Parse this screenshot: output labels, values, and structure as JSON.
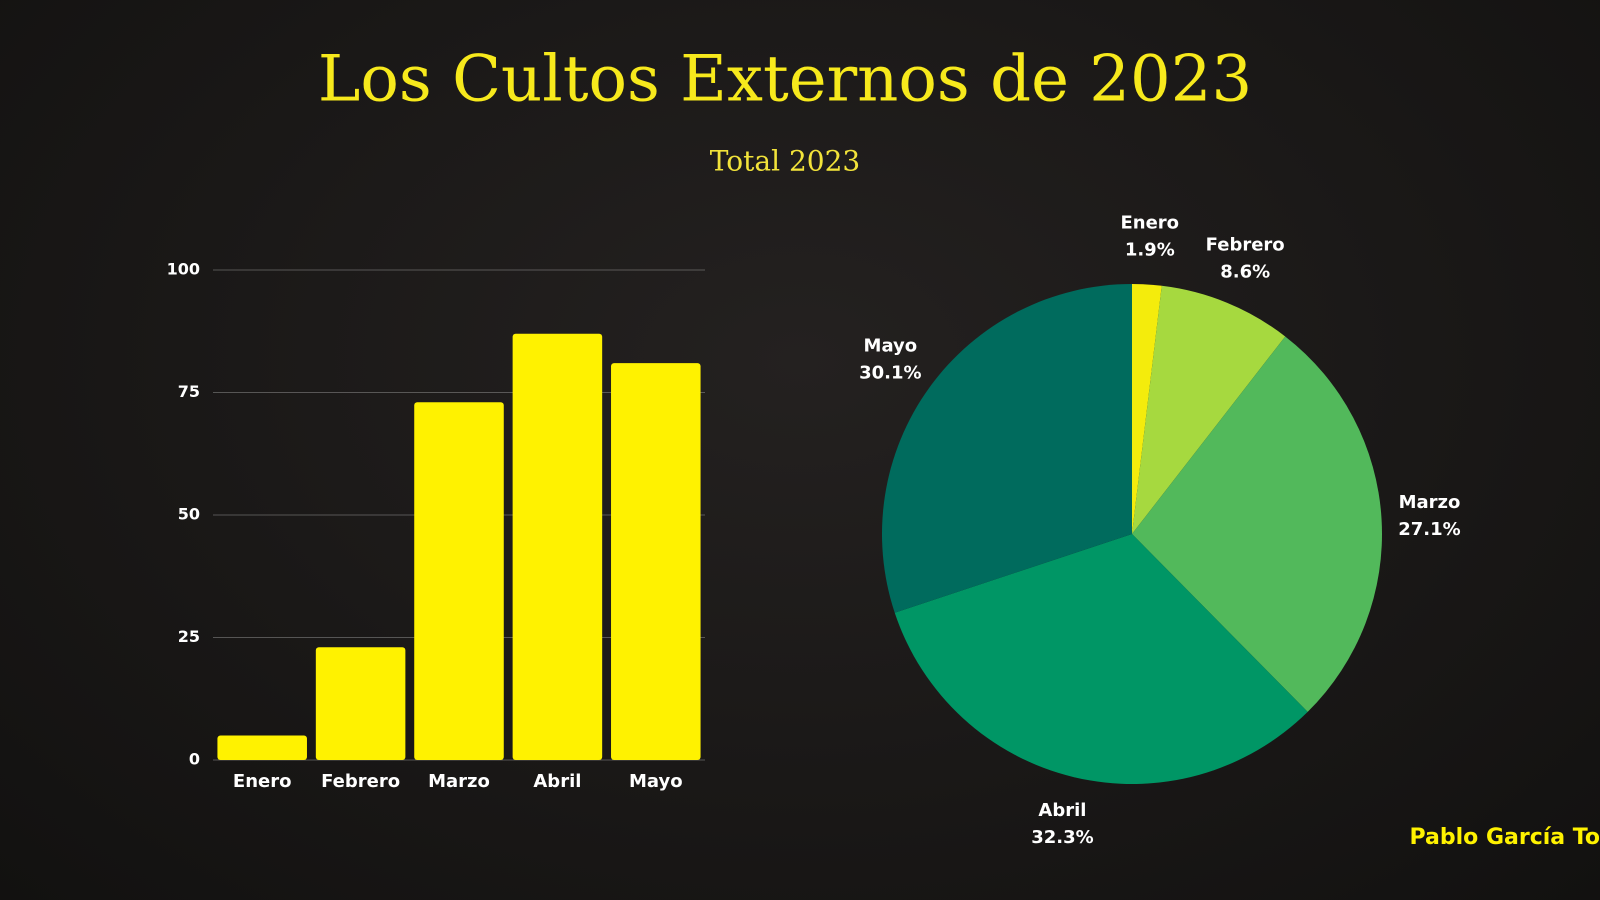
{
  "title": "Los Cultos Externos de 2023",
  "subtitle": "Total 2023",
  "author": "Pablo García To",
  "chart_data": [
    {
      "type": "bar",
      "categories": [
        "Enero",
        "Febrero",
        "Marzo",
        "Abril",
        "Mayo"
      ],
      "values": [
        5,
        23,
        73,
        87,
        81
      ],
      "color": "#fff200",
      "ylim": [
        0,
        100
      ],
      "yticks": [
        0,
        25,
        50,
        75,
        100
      ],
      "grid": true
    },
    {
      "type": "pie",
      "categories": [
        "Enero",
        "Febrero",
        "Marzo",
        "Abril",
        "Mayo"
      ],
      "values": [
        1.9,
        8.6,
        27.1,
        32.3,
        30.1
      ],
      "value_labels": [
        "1.9%",
        "8.6%",
        "27.1%",
        "32.3%",
        "30.1%"
      ],
      "colors": [
        "#f4ec0c",
        "#a6d93f",
        "#52b95b",
        "#009665",
        "#006b5d"
      ]
    }
  ]
}
